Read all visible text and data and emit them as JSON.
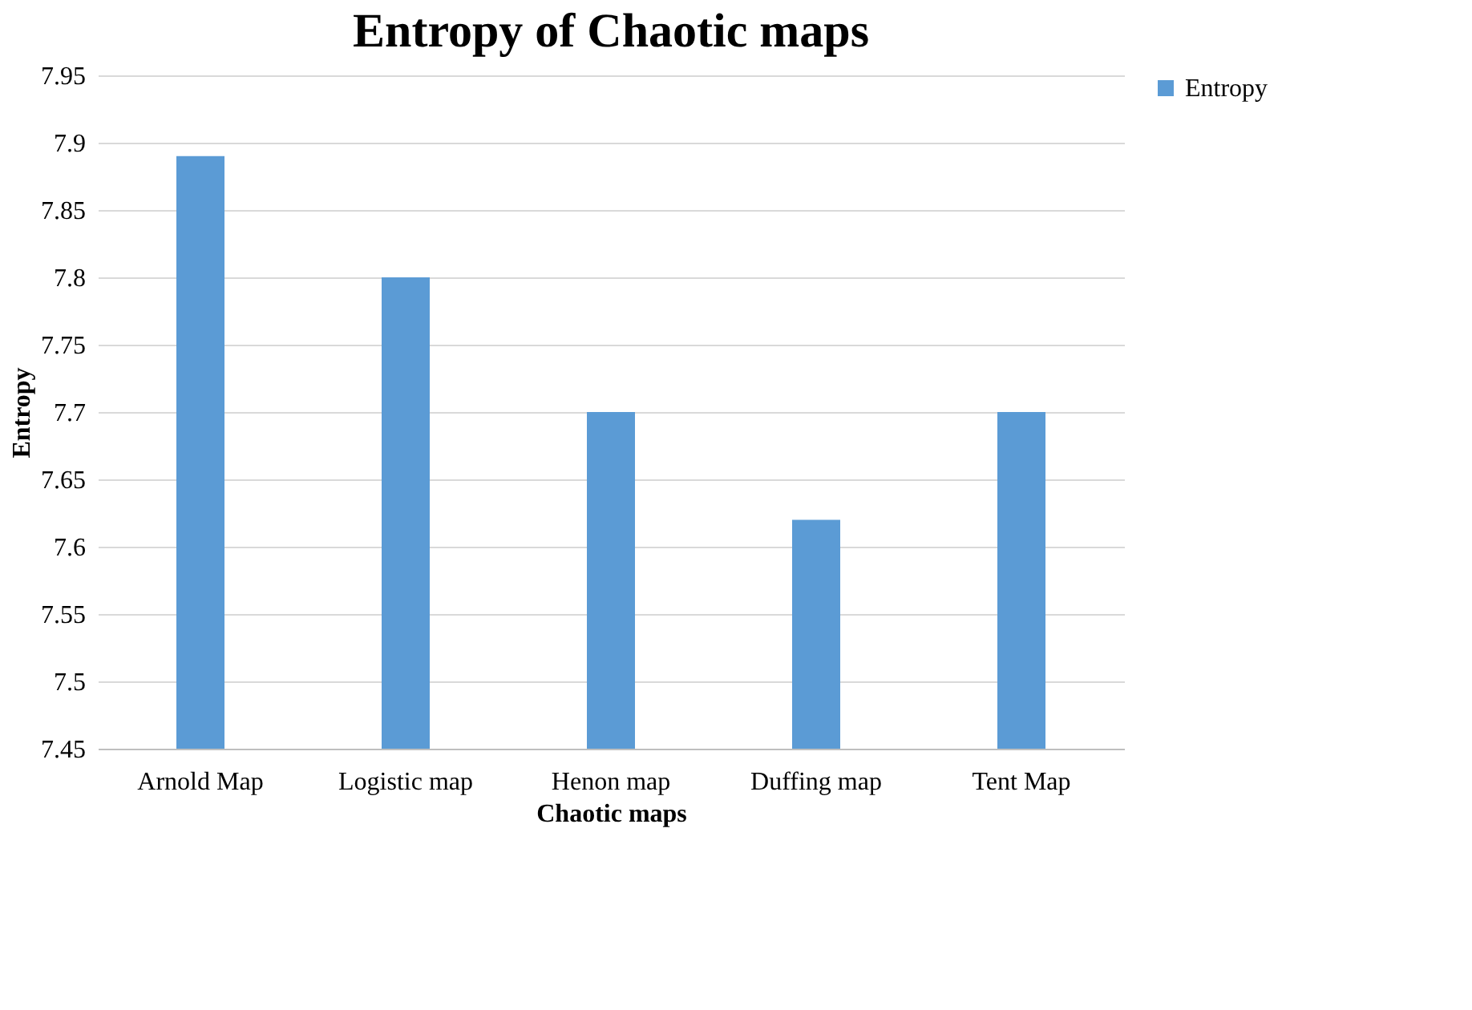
{
  "chart_data": {
    "type": "bar",
    "title": "Entropy of Chaotic maps",
    "xlabel": "Chaotic maps",
    "ylabel": "Entropy",
    "categories": [
      "Arnold Map",
      "Logistic map",
      "Henon map",
      "Duffing map",
      "Tent Map"
    ],
    "series": [
      {
        "name": "Entropy",
        "color": "#5b9bd5",
        "values": [
          7.89,
          7.8,
          7.7,
          7.62,
          7.7
        ]
      }
    ],
    "ylim": [
      7.45,
      7.95
    ],
    "yticks": [
      7.45,
      7.5,
      7.55,
      7.6,
      7.65,
      7.7,
      7.75,
      7.8,
      7.85,
      7.9,
      7.95
    ],
    "grid": "y",
    "legend": "right"
  }
}
